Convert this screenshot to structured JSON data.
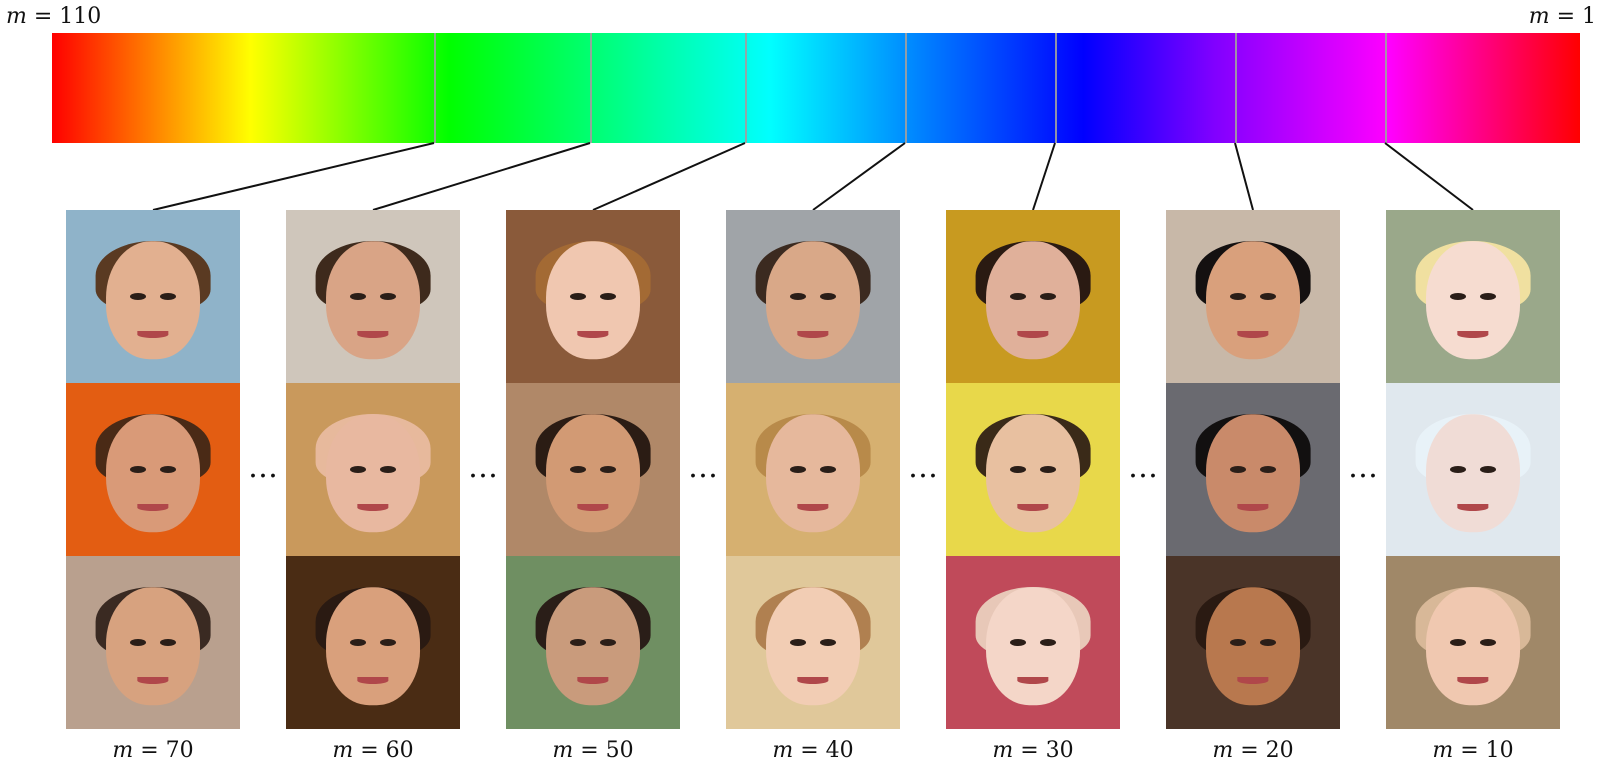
{
  "bar": {
    "left_label_var": "m",
    "left_label_value": "110",
    "right_label_var": "m",
    "right_label_value": "1"
  },
  "columns": [
    {
      "var": "m",
      "value": "70",
      "bg": [
        "#8fb3c9",
        "#e35d12",
        "#b9a08e"
      ],
      "hair": [
        "#5a3a22",
        "#4a2a16",
        "#3a2a22"
      ],
      "skin": [
        "#e2b090",
        "#d99a78",
        "#d7a27f"
      ]
    },
    {
      "var": "m",
      "value": "60",
      "bg": [
        "#cfc6bb",
        "#c9995c",
        "#4a2c14"
      ],
      "hair": [
        "#3e2a1c",
        "#e7b99c",
        "#2a1a12"
      ],
      "skin": [
        "#d9a486",
        "#e8b8a0",
        "#d9a07c"
      ]
    },
    {
      "var": "m",
      "value": "50",
      "bg": [
        "#8a5a3a",
        "#b08868",
        "#6f8f62"
      ],
      "hair": [
        "#a36a34",
        "#2b1c14",
        "#2a1e18"
      ],
      "skin": [
        "#f0c7b0",
        "#d29a74",
        "#c99b7c"
      ]
    },
    {
      "var": "m",
      "value": "40",
      "bg": [
        "#a0a4a8",
        "#d6b070",
        "#e0c89a"
      ],
      "hair": [
        "#3b2a20",
        "#b88a4a",
        "#b08050"
      ],
      "skin": [
        "#d9a888",
        "#e6b89c",
        "#f2cdb4"
      ]
    },
    {
      "var": "m",
      "value": "30",
      "bg": [
        "#c89a20",
        "#e8d84a",
        "#c04a5a"
      ],
      "hair": [
        "#2a1a12",
        "#3a2a18",
        "#e8c8b8"
      ],
      "skin": [
        "#e0b09a",
        "#e8c0a0",
        "#f4d6c8"
      ]
    },
    {
      "var": "m",
      "value": "20",
      "bg": [
        "#c8b8a8",
        "#6a6a70",
        "#4a3428"
      ],
      "hair": [
        "#141010",
        "#121010",
        "#2a1a12"
      ],
      "skin": [
        "#d9a07c",
        "#c98a6a",
        "#b8784e"
      ]
    },
    {
      "var": "m",
      "value": "10",
      "bg": [
        "#9aa88a",
        "#e0e8ee",
        "#a08868"
      ],
      "hair": [
        "#f0e0a0",
        "#e8f2f8",
        "#d8b898"
      ],
      "skin": [
        "#f6dcd0",
        "#f0dcd6",
        "#f0c8b0"
      ]
    }
  ],
  "ellipses": [
    "…",
    "…",
    "…",
    "…",
    "…",
    "…"
  ]
}
